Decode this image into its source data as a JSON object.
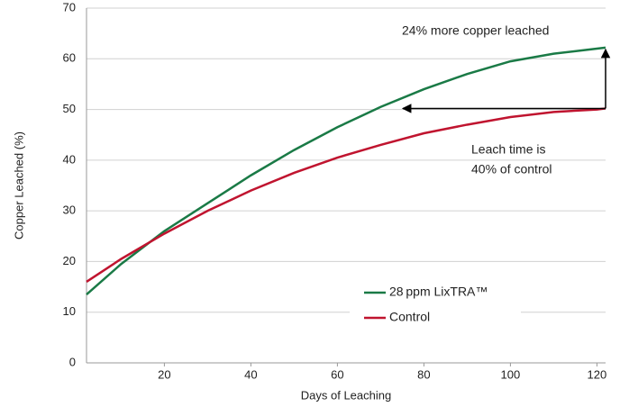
{
  "chart_data": {
    "type": "line",
    "xlabel": "Days of Leaching",
    "ylabel": "Copper Leached (%)",
    "x": [
      2,
      10,
      20,
      30,
      40,
      50,
      60,
      70,
      80,
      90,
      100,
      110,
      120,
      122
    ],
    "series": [
      {
        "name": "28 ppm LixTRA™",
        "color": "#1a7a46",
        "values": [
          13.5,
          19.5,
          26,
          31.5,
          37,
          42,
          46.5,
          50.5,
          54,
          57,
          59.5,
          61,
          62,
          62.2
        ]
      },
      {
        "name": "Control",
        "color": "#c0142f",
        "values": [
          16,
          20.5,
          25.5,
          30,
          34,
          37.5,
          40.5,
          43,
          45.3,
          47,
          48.5,
          49.5,
          50,
          50.2
        ]
      }
    ],
    "xlim": [
      2,
      122
    ],
    "xticks": [
      20,
      40,
      60,
      80,
      100,
      120
    ],
    "ylim": [
      0,
      70
    ],
    "yticks": [
      0,
      10,
      20,
      30,
      40,
      50,
      60,
      70
    ],
    "grid": true,
    "annotations": [
      "24% more copper leached",
      "Leach time is",
      "40% of control"
    ]
  }
}
